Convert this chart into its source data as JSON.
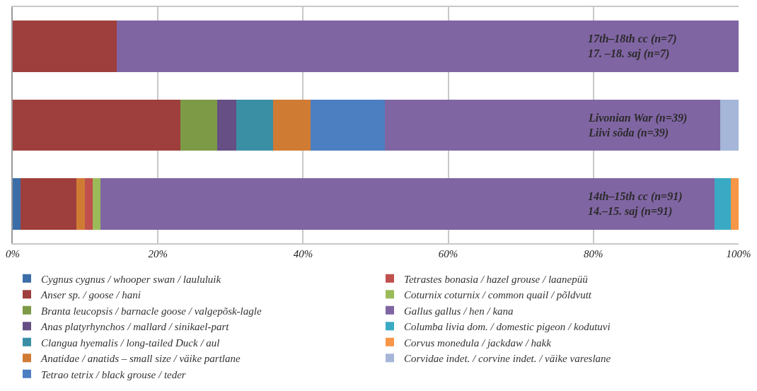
{
  "chart_data": {
    "type": "bar",
    "orientation": "horizontal",
    "stacked": true,
    "categories": [
      "17th–18th cc (n=7)\n17. –18. saj (n=7)",
      "Livonian War (n=39)\nLiivi sõda (n=39)",
      "14th–15th cc (n=91)\n14.–15. saj (n=91)"
    ],
    "series": [
      {
        "name": "Cygnus cygnus / whooper swan / laululuik",
        "color": "#3b6ea8",
        "values": [
          null,
          null,
          1.1
        ]
      },
      {
        "name": "Anser sp. / goose / hani",
        "color": "#9e3f3d",
        "values": [
          14.3,
          23.1,
          7.7
        ]
      },
      {
        "name": "Branta leucopsis / barnacle goose / valgepõsk-lagle",
        "color": "#7d9a46",
        "values": [
          null,
          5.1,
          null
        ]
      },
      {
        "name": "Anas platyrhynchos / mallard / sinikael-part",
        "color": "#654f85",
        "values": [
          null,
          2.6,
          null
        ]
      },
      {
        "name": "Clangua hyemalis / long-tailed Duck / aul",
        "color": "#3a8fa5",
        "values": [
          null,
          5.1,
          null
        ]
      },
      {
        "name": "Anatidae / anatids – small size / väike partlane",
        "color": "#d07b34",
        "values": [
          null,
          5.1,
          1.1
        ]
      },
      {
        "name": "Tetrao tetrix / black grouse / teder",
        "color": "#4c7fc2",
        "values": [
          null,
          10.3,
          null
        ]
      },
      {
        "name": "Tetrastes bonasia / hazel grouse / laanepüü",
        "color": "#c0504d",
        "values": [
          null,
          null,
          1.1
        ]
      },
      {
        "name": "Coturnix coturnix / common quail / põldvutt",
        "color": "#9bbb59",
        "values": [
          null,
          null,
          1.1
        ]
      },
      {
        "name": "Gallus gallus / hen / kana",
        "color": "#8065a3",
        "values": [
          85.7,
          46.2,
          84.6
        ]
      },
      {
        "name": "Columba livia dom. / domestic pigeon / kodutuvi",
        "color": "#3aaac4",
        "values": [
          null,
          null,
          2.2
        ]
      },
      {
        "name": "Corvus monedula / jackdaw / hakk",
        "color": "#f79646",
        "values": [
          null,
          null,
          1.1
        ]
      },
      {
        "name": "Corvidae indet. / corvine indet. / väike vareslane",
        "color": "#a5b6d8",
        "values": [
          null,
          2.6,
          null
        ]
      }
    ],
    "xlim": [
      0,
      100
    ],
    "xticks": [
      {
        "value": 0,
        "label": "0%"
      },
      {
        "value": 20,
        "label": "20%"
      },
      {
        "value": 40,
        "label": "40%"
      },
      {
        "value": 60,
        "label": "60%"
      },
      {
        "value": 80,
        "label": "80%"
      },
      {
        "value": 100,
        "label": "100%"
      }
    ],
    "grid": "x",
    "legend": "bottom",
    "tick_labels": "x"
  }
}
